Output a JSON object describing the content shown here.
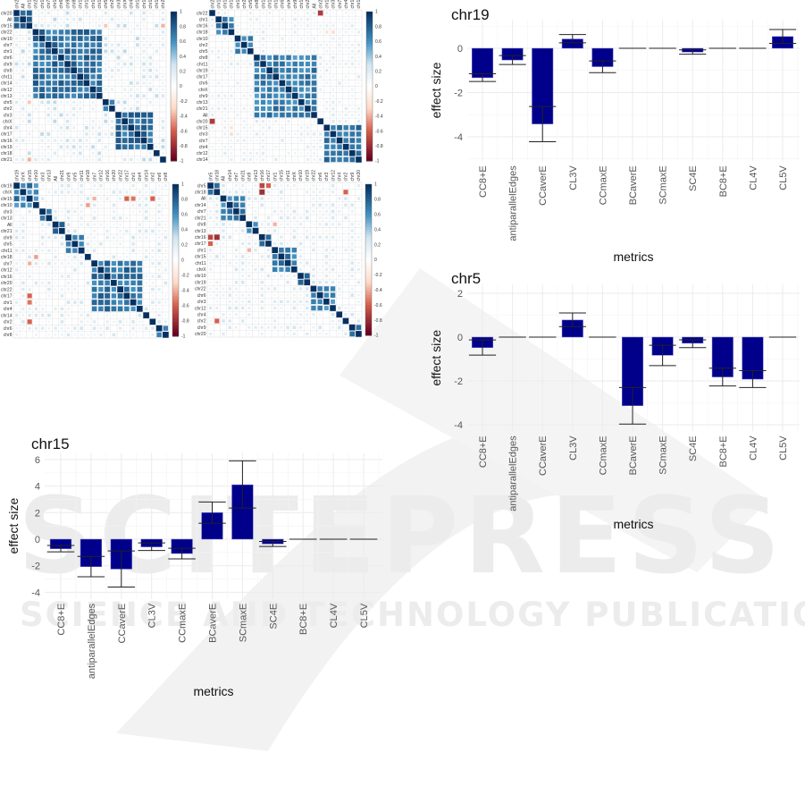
{
  "watermark": {
    "logo": "SCITEPRESS",
    "subtitle": "SCIENCE AND TECHNOLOGY PUBLICATIONS"
  },
  "colors": {
    "bar": "#00008B",
    "neg": "#67001F",
    "mid": "#FFFFFF",
    "pos": "#053061",
    "grid": "#EBEBEB"
  },
  "chart_data": [
    {
      "type": "heatmap",
      "id": "corr-top-left",
      "labels": [
        "chr20",
        "All",
        "chr15",
        "chr22",
        "chr10",
        "chr7",
        "chr1",
        "chr6",
        "chr9",
        "chr8",
        "chr11",
        "chr14",
        "chr12",
        "chr13",
        "chr5",
        "chr2",
        "chr3",
        "chrX",
        "chr4",
        "chr17",
        "chr16",
        "chr19",
        "chr18",
        "chr21"
      ],
      "blocks": [
        {
          "from": 0,
          "to": 2,
          "r": 0.85
        },
        {
          "from": 3,
          "to": 13,
          "r": 0.85
        },
        {
          "from": 14,
          "to": 15,
          "r": 0.8
        },
        {
          "from": 16,
          "to": 21,
          "r": 0.85
        }
      ],
      "background_r": 0.35,
      "negative_pairs": [
        {
          "a": 2,
          "b": 14,
          "r": -0.35
        },
        {
          "a": 2,
          "b": 23,
          "r": -0.4
        }
      ],
      "colorbar_ticks": [
        "1",
        "0.8",
        "0.6",
        "0.4",
        "0.2",
        "0",
        "-0.2",
        "-0.4",
        "-0.6",
        "-0.8",
        "-1"
      ]
    },
    {
      "type": "heatmap",
      "id": "corr-top-right",
      "labels": [
        "chr22",
        "chr1",
        "chr16",
        "chr18",
        "chr10",
        "chr2",
        "chr5",
        "chr8",
        "chr11",
        "chr19",
        "chr17",
        "chr6",
        "chrX",
        "chr9",
        "chr13",
        "chr21",
        "All",
        "chr20",
        "chr15",
        "chr3",
        "chr7",
        "chr4",
        "chr12",
        "chr14"
      ],
      "blocks": [
        {
          "from": 1,
          "to": 3,
          "r": 0.85
        },
        {
          "from": 4,
          "to": 6,
          "r": 0.8
        },
        {
          "from": 7,
          "to": 16,
          "r": 0.8
        },
        {
          "from": 18,
          "to": 23,
          "r": 0.85
        }
      ],
      "background_r": 0.25,
      "negative_pairs": [
        {
          "a": 0,
          "b": 17,
          "r": -0.75
        },
        {
          "a": 3,
          "b": 19,
          "r": -0.3
        },
        {
          "a": 3,
          "b": 18,
          "r": -0.25
        }
      ],
      "colorbar_ticks": [
        "1",
        "0.8",
        "0.6",
        "0.4",
        "0.2",
        "0",
        "-0.2",
        "-0.4",
        "-0.6",
        "-0.8",
        "-1"
      ]
    },
    {
      "type": "heatmap",
      "id": "corr-bottom-left",
      "labels": [
        "chr19",
        "chrX",
        "chr15",
        "chr10",
        "chr3",
        "chr13",
        "All",
        "chr21",
        "chr9",
        "chr5",
        "chr11",
        "chr18",
        "chr7",
        "chr12",
        "chr16",
        "chr20",
        "chr22",
        "chr17",
        "chr1",
        "chr4",
        "chr14",
        "chr2",
        "chr6",
        "chr8"
      ],
      "blocks": [
        {
          "from": 0,
          "to": 3,
          "r": 0.8
        },
        {
          "from": 4,
          "to": 5,
          "r": 0.85
        },
        {
          "from": 6,
          "to": 7,
          "r": 0.85
        },
        {
          "from": 8,
          "to": 10,
          "r": 0.85
        },
        {
          "from": 12,
          "to": 19,
          "r": 0.85
        },
        {
          "from": 22,
          "to": 23,
          "r": 0.85
        }
      ],
      "background_r": 0.3,
      "negative_pairs": [
        {
          "a": 2,
          "b": 12,
          "r": -0.4
        },
        {
          "a": 2,
          "b": 17,
          "r": -0.6
        },
        {
          "a": 2,
          "b": 18,
          "r": -0.55
        },
        {
          "a": 2,
          "b": 21,
          "r": -0.6
        },
        {
          "a": 3,
          "b": 11,
          "r": -0.45
        }
      ],
      "colorbar_ticks": [
        "1",
        "0.8",
        "0.6",
        "0.4",
        "0.2",
        "0",
        "-0.2",
        "-0.4",
        "-0.6",
        "-0.8",
        "-1"
      ]
    },
    {
      "type": "heatmap",
      "id": "corr-bottom-right",
      "labels": [
        "chr5",
        "chr18",
        "All",
        "chr14",
        "chr7",
        "chr21",
        "chr8",
        "chr13",
        "chr16",
        "chr17",
        "chr1",
        "chr15",
        "chr11",
        "chrX",
        "chr10",
        "chr19",
        "chr22",
        "chr6",
        "chr3",
        "chr12",
        "chr4",
        "chr2",
        "chr9",
        "chr20"
      ],
      "blocks": [
        {
          "from": 0,
          "to": 1,
          "r": 0.85
        },
        {
          "from": 2,
          "to": 5,
          "r": 0.8
        },
        {
          "from": 6,
          "to": 7,
          "r": 0.85
        },
        {
          "from": 8,
          "to": 9,
          "r": 0.85
        },
        {
          "from": 10,
          "to": 13,
          "r": 0.85
        },
        {
          "from": 14,
          "to": 15,
          "r": 0.8
        },
        {
          "from": 16,
          "to": 19,
          "r": 0.8
        },
        {
          "from": 22,
          "to": 23,
          "r": 0.85
        }
      ],
      "background_r": 0.3,
      "negative_pairs": [
        {
          "a": 0,
          "b": 8,
          "r": -0.7
        },
        {
          "a": 0,
          "b": 9,
          "r": -0.6
        },
        {
          "a": 1,
          "b": 8,
          "r": -0.8
        },
        {
          "a": 1,
          "b": 21,
          "r": -0.6
        },
        {
          "a": 6,
          "b": 10,
          "r": -0.4
        }
      ],
      "colorbar_ticks": [
        "1",
        "0.8",
        "0.6",
        "0.4",
        "0.2",
        "0",
        "-0.2",
        "-0.4",
        "-0.6",
        "-0.8",
        "-1"
      ]
    },
    {
      "type": "bar",
      "id": "chr19",
      "title": "chr19",
      "xlabel": "metrics",
      "ylabel": "effect size",
      "categories": [
        "CC8+E",
        "antiparallelEdges",
        "CCaverE",
        "CL3V",
        "CCmaxE",
        "BCaverE",
        "SCmaxE",
        "SC4E",
        "BC8+E",
        "CL4V",
        "CL5V"
      ],
      "values": [
        -1.33,
        -0.53,
        -3.42,
        0.42,
        -0.83,
        0,
        0,
        -0.17,
        0,
        0,
        0.53
      ],
      "error_low": [
        -1.5,
        -0.73,
        -4.22,
        0.25,
        -1.1,
        0,
        0,
        -0.27,
        0,
        0,
        0.22
      ],
      "error_high": [
        -1.15,
        -0.33,
        -2.63,
        0.62,
        -0.57,
        0,
        0,
        -0.07,
        0,
        0,
        0.85
      ],
      "yticks": [
        -4,
        -2,
        0
      ],
      "ylim": [
        -5.1,
        1.3
      ]
    },
    {
      "type": "bar",
      "id": "chr5",
      "title": "chr5",
      "xlabel": "metrics",
      "ylabel": "effect size",
      "categories": [
        "CC8+E",
        "antiparallelEdges",
        "CCaverE",
        "CL3V",
        "CCmaxE",
        "BCaverE",
        "SCmaxE",
        "SC4E",
        "BC8+E",
        "CL4V",
        "CL5V"
      ],
      "values": [
        -0.48,
        0,
        0,
        0.78,
        0,
        -3.13,
        -0.83,
        -0.28,
        -1.82,
        -1.92,
        0
      ],
      "error_low": [
        -0.82,
        0,
        0,
        0.48,
        0,
        -3.97,
        -1.3,
        -0.48,
        -2.23,
        -2.3,
        0
      ],
      "error_high": [
        -0.13,
        0,
        0,
        1.1,
        0,
        -2.3,
        -0.37,
        -0.12,
        -1.42,
        -1.53,
        0
      ],
      "yticks": [
        -4,
        -2,
        0,
        2
      ],
      "ylim": [
        -4.3,
        2.4
      ]
    },
    {
      "type": "bar",
      "id": "chr15",
      "title": "chr15",
      "xlabel": "metrics",
      "ylabel": "effect size",
      "categories": [
        "CC8+E",
        "antiparallelEdges",
        "CCaverE",
        "CL3V",
        "CCmaxE",
        "BCaverE",
        "SCmaxE",
        "SC4E",
        "BC8+E",
        "CL4V",
        "CL5V"
      ],
      "values": [
        -0.72,
        -2.07,
        -2.25,
        -0.58,
        -1.08,
        2.0,
        4.1,
        -0.35,
        0,
        0,
        0
      ],
      "error_low": [
        -0.95,
        -2.83,
        -3.6,
        -0.85,
        -1.48,
        1.2,
        2.35,
        -0.55,
        0,
        0,
        0
      ],
      "error_high": [
        -0.47,
        -1.3,
        -0.88,
        -0.28,
        -0.68,
        2.8,
        5.9,
        -0.17,
        0,
        0,
        0
      ],
      "yticks": [
        -4,
        -2,
        0,
        2,
        4,
        6
      ],
      "ylim": [
        -4.5,
        6.5
      ]
    }
  ]
}
